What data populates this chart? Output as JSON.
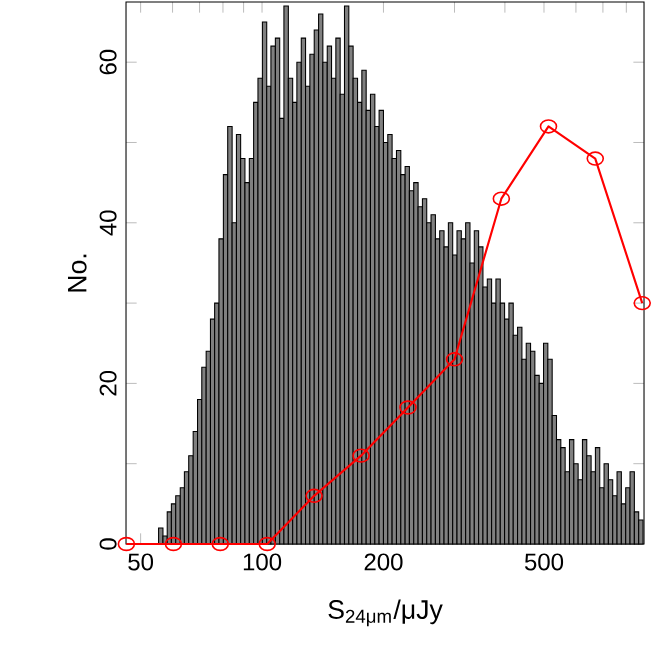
{
  "chart_data": {
    "type": "histogram",
    "xlabel": "S$_{24μm}$/μJy",
    "ylabel": "No.",
    "log": "x",
    "xlim": [
      46,
      885
    ],
    "ylim": [
      0,
      67.5
    ],
    "xticks": [
      50,
      {
        "value": 60,
        "label": null
      },
      {
        "value": 70,
        "label": null
      },
      {
        "value": 80,
        "label": null
      },
      {
        "value": 90,
        "label": null
      },
      100,
      200,
      {
        "value": 300,
        "label": null
      },
      {
        "value": 400,
        "label": null
      },
      500,
      {
        "value": 600,
        "label": null
      },
      {
        "value": 700,
        "label": null
      },
      {
        "value": 800,
        "label": null
      }
    ],
    "yticks": [
      0,
      {
        "value": 10,
        "label": null
      },
      20,
      {
        "value": 30,
        "label": null
      },
      40,
      {
        "value": 50,
        "label": null
      },
      60
    ],
    "color": "#808080",
    "bins": [
      55.4,
      56.8,
      58.2,
      59.6,
      61.1,
      62.7,
      64.2,
      65.8,
      67.5,
      69.2,
      70.9,
      72.7,
      74.5,
      76.3,
      78.2,
      80.2,
      82.2,
      84.3,
      86.4,
      88.5,
      90.7,
      93.0,
      95.3,
      97.7,
      100.2,
      102.7,
      105.2,
      107.9,
      110.6,
      113.3,
      116.2,
      119.1,
      122.0,
      125.1,
      128.2,
      131.4,
      134.7,
      138.1,
      141.5,
      145.1,
      148.7,
      152.4,
      156.2,
      160.1,
      164.1,
      168.2,
      172.5,
      176.8,
      181.2,
      185.7,
      190.4,
      195.1,
      200.0,
      205.0,
      210.1,
      215.4,
      220.8,
      226.3,
      231.9,
      237.7,
      243.7,
      249.8,
      256.0,
      262.4,
      269.0,
      275.7,
      282.6,
      289.7,
      296.9,
      304.3,
      311.9,
      319.7,
      327.7,
      335.9,
      344.3,
      352.9,
      361.8,
      370.8,
      380.1,
      389.6,
      399.3,
      409.3,
      419.5,
      430.0,
      440.8,
      451.8,
      463.1,
      474.6,
      486.5,
      498.7,
      511.1,
      523.9,
      537.0,
      550.4,
      564.2,
      578.3,
      592.8,
      607.6,
      622.8,
      638.3,
      654.3,
      670.6,
      687.4,
      704.6,
      722.2,
      740.2,
      758.7,
      777.7,
      797.2,
      817.1,
      837.5,
      858.5,
      880.0
    ],
    "values": [
      2,
      1,
      4,
      5,
      6,
      7,
      9,
      11,
      14,
      18,
      22,
      24,
      28,
      30,
      38,
      46,
      52,
      40,
      51,
      48,
      45,
      48,
      55,
      58,
      65,
      57,
      62,
      63,
      53,
      67,
      58,
      55,
      60,
      63,
      57,
      61,
      64,
      66,
      60,
      62,
      58,
      63,
      56,
      67,
      62,
      58,
      55,
      59,
      54,
      56,
      52,
      54,
      50,
      51,
      48,
      49,
      46,
      47,
      44,
      45,
      42,
      43,
      40,
      41,
      38,
      39,
      37,
      40,
      36,
      39,
      38,
      40,
      35,
      39,
      37,
      32,
      33,
      30,
      33,
      30,
      28,
      30,
      26,
      27,
      23,
      25,
      24,
      21,
      20,
      25,
      23,
      16,
      13,
      12,
      9,
      13,
      10,
      8,
      13,
      11,
      9,
      12,
      7,
      10,
      8,
      6,
      9,
      5,
      7,
      9,
      4,
      3
    ],
    "series": [
      {
        "type": "line",
        "color": "#ff0000",
        "marker": "circle",
        "x": [
          46.1,
          60.3,
          78.8,
          103,
          134.6,
          176,
          230,
          300,
          392,
          513,
          670,
          876
        ],
        "values": [
          0,
          0,
          0,
          0,
          6,
          11,
          17,
          23,
          43,
          52,
          48,
          30
        ]
      }
    ]
  }
}
